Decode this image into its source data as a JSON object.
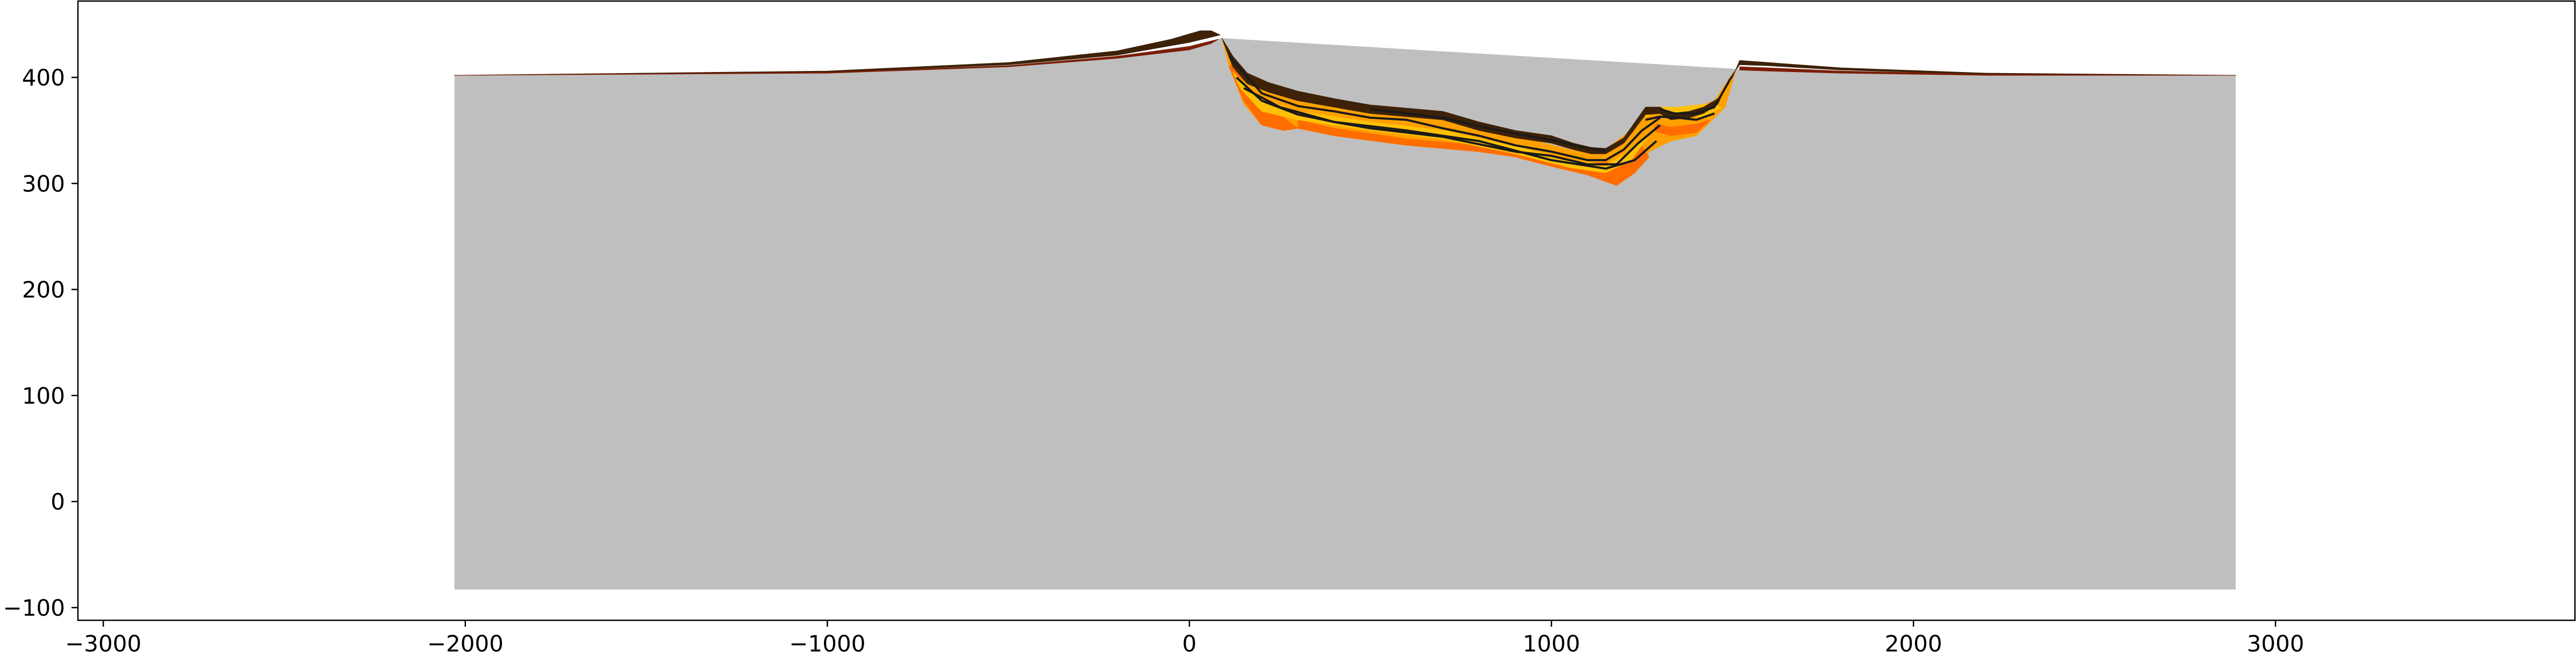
{
  "chart_data": {
    "type": "area",
    "title": "",
    "xlabel": "",
    "ylabel": "",
    "xlim": [
      -3070,
      3830
    ],
    "ylim": [
      -112,
      472
    ],
    "grid": false,
    "legend": "none",
    "x_ticks": [
      {
        "value": -3000,
        "label": "−3000"
      },
      {
        "value": -2000,
        "label": "−2000"
      },
      {
        "value": -1000,
        "label": "−1000"
      },
      {
        "value": 0,
        "label": "0"
      },
      {
        "value": 1000,
        "label": "1000"
      },
      {
        "value": 2000,
        "label": "2000"
      },
      {
        "value": 3000,
        "label": "3000"
      }
    ],
    "y_ticks": [
      {
        "value": -100,
        "label": "−100"
      },
      {
        "value": 0,
        "label": "0"
      },
      {
        "value": 100,
        "label": "100"
      },
      {
        "value": 200,
        "label": "200"
      },
      {
        "value": 300,
        "label": "300"
      },
      {
        "value": 400,
        "label": "400"
      }
    ],
    "basement": {
      "x_range": [
        -2030,
        2890
      ],
      "bottom": -83,
      "top": [
        [
          -2030,
          402
        ],
        [
          -1000,
          405
        ],
        [
          -500,
          412
        ],
        [
          -200,
          420
        ],
        [
          0,
          430
        ],
        [
          90,
          437
        ],
        [
          1510,
          408
        ],
        [
          2000,
          405
        ],
        [
          2890,
          402
        ]
      ],
      "color": "#bfbfbf"
    },
    "colors": {
      "dark_brown": "#3d2208",
      "brown_red": "#7a1d04",
      "orange": "#ff6d00",
      "yellow": "#ffc107",
      "gold": "#ffa000",
      "black": "#1a1a1a"
    },
    "layers": [
      {
        "name": "left-ridge",
        "color": "#3d2208",
        "points": [
          [
            -2030,
            402
          ],
          [
            -1000,
            406
          ],
          [
            -500,
            414
          ],
          [
            -200,
            425
          ],
          [
            -50,
            436
          ],
          [
            30,
            444
          ],
          [
            60,
            444
          ],
          [
            85,
            440
          ],
          [
            60,
            438
          ],
          [
            0,
            433
          ],
          [
            -200,
            421
          ],
          [
            -500,
            412
          ],
          [
            -1000,
            405
          ],
          [
            -2030,
            402
          ]
        ]
      },
      {
        "name": "left-ridge-base",
        "color": "#7a1d04",
        "points": [
          [
            -2030,
            402
          ],
          [
            -1000,
            405
          ],
          [
            -500,
            411
          ],
          [
            -200,
            420
          ],
          [
            0,
            429
          ],
          [
            80,
            436
          ],
          [
            60,
            432
          ],
          [
            0,
            426
          ],
          [
            -200,
            418
          ],
          [
            -500,
            410
          ],
          [
            -1000,
            404
          ],
          [
            -2030,
            402
          ]
        ]
      },
      {
        "name": "basin-fill",
        "color": "#ffa000",
        "points": [
          [
            90,
            437
          ],
          [
            130,
            410
          ],
          [
            200,
            390
          ],
          [
            300,
            378
          ],
          [
            500,
            368
          ],
          [
            700,
            360
          ],
          [
            900,
            345
          ],
          [
            1050,
            332
          ],
          [
            1130,
            327
          ],
          [
            1200,
            345
          ],
          [
            1270,
            368
          ],
          [
            1330,
            368
          ],
          [
            1400,
            372
          ],
          [
            1450,
            378
          ],
          [
            1510,
            408
          ],
          [
            1480,
            372
          ],
          [
            1400,
            345
          ],
          [
            1330,
            340
          ],
          [
            1270,
            330
          ],
          [
            1230,
            310
          ],
          [
            1180,
            298
          ],
          [
            1100,
            308
          ],
          [
            1000,
            316
          ],
          [
            900,
            325
          ],
          [
            800,
            330
          ],
          [
            600,
            336
          ],
          [
            400,
            345
          ],
          [
            300,
            352
          ],
          [
            260,
            350
          ],
          [
            200,
            355
          ],
          [
            150,
            375
          ],
          [
            110,
            410
          ],
          [
            90,
            437
          ]
        ]
      },
      {
        "name": "orange-lower-left",
        "color": "#ff6d00",
        "points": [
          [
            110,
            410
          ],
          [
            150,
            378
          ],
          [
            200,
            355
          ],
          [
            260,
            350
          ],
          [
            300,
            352
          ],
          [
            250,
            365
          ],
          [
            200,
            372
          ],
          [
            160,
            390
          ],
          [
            120,
            415
          ],
          [
            110,
            410
          ]
        ]
      },
      {
        "name": "orange-lower-mid",
        "color": "#ff6d00",
        "points": [
          [
            300,
            352
          ],
          [
            400,
            345
          ],
          [
            600,
            336
          ],
          [
            800,
            330
          ],
          [
            900,
            325
          ],
          [
            1000,
            316
          ],
          [
            1000,
            322
          ],
          [
            800,
            336
          ],
          [
            600,
            342
          ],
          [
            400,
            352
          ],
          [
            300,
            360
          ],
          [
            300,
            352
          ]
        ]
      },
      {
        "name": "orange-lower-right",
        "color": "#ff6d00",
        "points": [
          [
            1000,
            316
          ],
          [
            1100,
            308
          ],
          [
            1180,
            298
          ],
          [
            1230,
            310
          ],
          [
            1270,
            325
          ],
          [
            1250,
            335
          ],
          [
            1180,
            320
          ],
          [
            1100,
            320
          ],
          [
            1000,
            322
          ],
          [
            1000,
            316
          ]
        ]
      },
      {
        "name": "orange-right-bump",
        "color": "#ff6d00",
        "points": [
          [
            1280,
            350
          ],
          [
            1330,
            345
          ],
          [
            1400,
            348
          ],
          [
            1440,
            360
          ],
          [
            1400,
            356
          ],
          [
            1330,
            353
          ],
          [
            1290,
            356
          ],
          [
            1280,
            350
          ]
        ]
      },
      {
        "name": "yellow-band-1",
        "color": "#ffc107",
        "points": [
          [
            120,
            405
          ],
          [
            200,
            380
          ],
          [
            300,
            368
          ],
          [
            500,
            358
          ],
          [
            700,
            350
          ],
          [
            900,
            335
          ],
          [
            1050,
            322
          ],
          [
            1150,
            318
          ],
          [
            1220,
            330
          ],
          [
            1280,
            350
          ],
          [
            1220,
            322
          ],
          [
            1150,
            310
          ],
          [
            1050,
            315
          ],
          [
            900,
            328
          ],
          [
            700,
            342
          ],
          [
            500,
            350
          ],
          [
            300,
            360
          ],
          [
            200,
            368
          ],
          [
            140,
            390
          ],
          [
            120,
            405
          ]
        ]
      },
      {
        "name": "yellow-band-2",
        "color": "#ffc107",
        "points": [
          [
            1250,
            362
          ],
          [
            1300,
            368
          ],
          [
            1350,
            366
          ],
          [
            1420,
            362
          ],
          [
            1470,
            372
          ],
          [
            1430,
            375
          ],
          [
            1350,
            372
          ],
          [
            1300,
            372
          ],
          [
            1250,
            362
          ]
        ]
      },
      {
        "name": "top-dark",
        "color": "#3d2208",
        "points": [
          [
            90,
            437
          ],
          [
            120,
            420
          ],
          [
            160,
            404
          ],
          [
            220,
            395
          ],
          [
            300,
            387
          ],
          [
            400,
            380
          ],
          [
            500,
            374
          ],
          [
            600,
            371
          ],
          [
            700,
            368
          ],
          [
            800,
            358
          ],
          [
            900,
            350
          ],
          [
            1000,
            345
          ],
          [
            1060,
            338
          ],
          [
            1110,
            334
          ],
          [
            1150,
            333
          ],
          [
            1200,
            343
          ],
          [
            1260,
            372
          ],
          [
            1300,
            372
          ],
          [
            1330,
            366
          ],
          [
            1380,
            368
          ],
          [
            1420,
            372
          ],
          [
            1460,
            380
          ],
          [
            1500,
            400
          ],
          [
            1520,
            416
          ],
          [
            1600,
            414
          ],
          [
            1800,
            409
          ],
          [
            2200,
            404
          ],
          [
            2890,
            402
          ],
          [
            2200,
            403
          ],
          [
            1800,
            407
          ],
          [
            1600,
            411
          ],
          [
            1520,
            412
          ],
          [
            1490,
            398
          ],
          [
            1460,
            375
          ],
          [
            1420,
            366
          ],
          [
            1380,
            362
          ],
          [
            1330,
            360
          ],
          [
            1300,
            366
          ],
          [
            1260,
            365
          ],
          [
            1200,
            338
          ],
          [
            1150,
            328
          ],
          [
            1110,
            328
          ],
          [
            1060,
            332
          ],
          [
            1000,
            338
          ],
          [
            900,
            343
          ],
          [
            800,
            350
          ],
          [
            700,
            360
          ],
          [
            600,
            363
          ],
          [
            500,
            366
          ],
          [
            400,
            372
          ],
          [
            300,
            378
          ],
          [
            220,
            386
          ],
          [
            160,
            394
          ],
          [
            120,
            410
          ],
          [
            90,
            437
          ]
        ]
      },
      {
        "name": "right-ridge-base",
        "color": "#7a1d04",
        "points": [
          [
            1520,
            410
          ],
          [
            1600,
            409
          ],
          [
            1800,
            406
          ],
          [
            2200,
            403
          ],
          [
            2890,
            402
          ],
          [
            2200,
            402
          ],
          [
            1800,
            404
          ],
          [
            1600,
            406
          ],
          [
            1520,
            407
          ],
          [
            1520,
            410
          ]
        ]
      }
    ],
    "strata_lines": [
      {
        "color": "#1a1a1a",
        "points": [
          [
            110,
            420
          ],
          [
            200,
            385
          ],
          [
            300,
            373
          ],
          [
            400,
            368
          ],
          [
            500,
            362
          ],
          [
            600,
            360
          ],
          [
            700,
            352
          ],
          [
            800,
            345
          ],
          [
            900,
            336
          ],
          [
            1000,
            330
          ],
          [
            1100,
            322
          ],
          [
            1150,
            322
          ],
          [
            1200,
            332
          ],
          [
            1250,
            350
          ],
          [
            1300,
            362
          ]
        ]
      },
      {
        "color": "#1a1a1a",
        "points": [
          [
            130,
            400
          ],
          [
            200,
            378
          ],
          [
            300,
            365
          ],
          [
            400,
            358
          ],
          [
            500,
            352
          ],
          [
            700,
            344
          ],
          [
            900,
            330
          ],
          [
            1000,
            326
          ],
          [
            1100,
            318
          ],
          [
            1180,
            318
          ],
          [
            1240,
            338
          ],
          [
            1300,
            355
          ]
        ]
      },
      {
        "color": "#1a1a1a",
        "points": [
          [
            150,
            390
          ],
          [
            250,
            372
          ],
          [
            400,
            358
          ],
          [
            600,
            350
          ],
          [
            800,
            340
          ],
          [
            1000,
            322
          ],
          [
            1150,
            314
          ],
          [
            1230,
            322
          ],
          [
            1290,
            340
          ]
        ]
      },
      {
        "color": "#1a1a1a",
        "points": [
          [
            1300,
            370
          ],
          [
            1340,
            366
          ],
          [
            1400,
            366
          ],
          [
            1450,
            372
          ],
          [
            1490,
            396
          ]
        ]
      },
      {
        "color": "#1a1a1a",
        "points": [
          [
            1260,
            360
          ],
          [
            1300,
            363
          ],
          [
            1350,
            362
          ],
          [
            1400,
            360
          ],
          [
            1450,
            366
          ]
        ]
      },
      {
        "color": "#1a1a1a",
        "points": [
          [
            500,
            370
          ],
          [
            600,
            366
          ],
          [
            700,
            362
          ],
          [
            800,
            354
          ],
          [
            900,
            347
          ],
          [
            1000,
            341
          ],
          [
            1100,
            333
          ],
          [
            1150,
            331
          ]
        ]
      }
    ]
  }
}
